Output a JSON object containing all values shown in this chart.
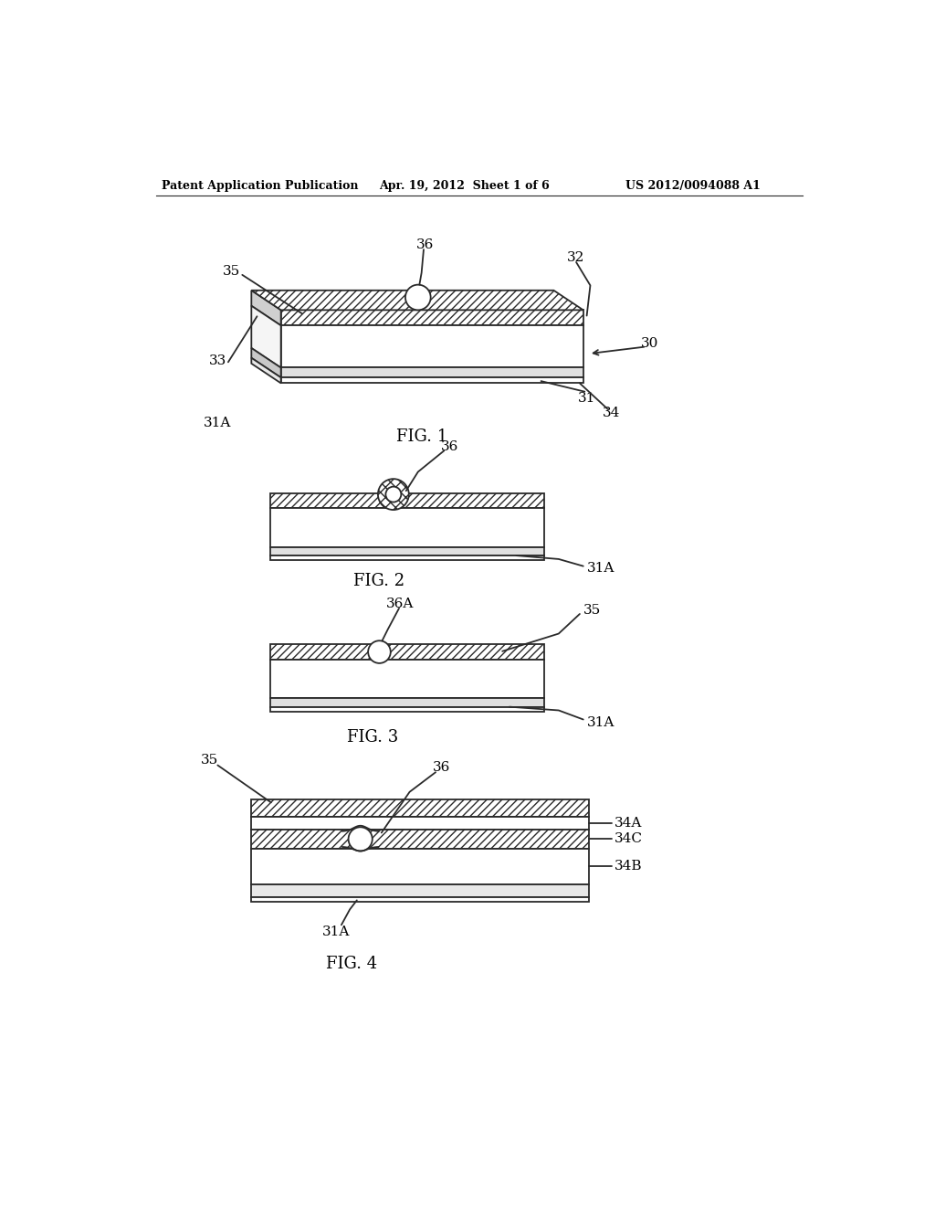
{
  "header_left": "Patent Application Publication",
  "header_mid": "Apr. 19, 2012  Sheet 1 of 6",
  "header_right": "US 2012/0094088 A1",
  "fig1_label": "FIG. 1",
  "fig2_label": "FIG. 2",
  "fig3_label": "FIG. 3",
  "fig4_label": "FIG. 4",
  "bg_color": "#ffffff",
  "line_color": "#2a2a2a"
}
